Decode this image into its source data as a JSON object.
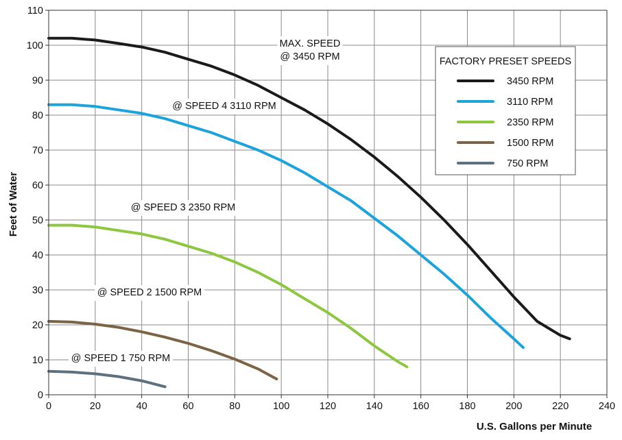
{
  "chart_data": {
    "type": "line",
    "title": "",
    "xlabel": "U.S. Gallons per Minute",
    "ylabel": "Feet of Water",
    "xlim": [
      0,
      240
    ],
    "ylim": [
      0,
      110
    ],
    "xticks": [
      0,
      20,
      40,
      60,
      80,
      100,
      120,
      140,
      160,
      180,
      200,
      220,
      240
    ],
    "yticks": [
      0,
      10,
      20,
      30,
      40,
      50,
      60,
      70,
      80,
      90,
      100,
      110
    ],
    "grid": true,
    "legend": {
      "title": "FACTORY PRESET SPEEDS",
      "placement": "top-right"
    },
    "series": [
      {
        "name": "3450 RPM",
        "color": "#1a1a1a",
        "annotation": [
          "MAX. SPEED",
          "@ 3450 RPM"
        ],
        "x": [
          0,
          10,
          20,
          30,
          40,
          50,
          60,
          70,
          80,
          90,
          100,
          110,
          120,
          130,
          140,
          150,
          160,
          170,
          180,
          190,
          200,
          210,
          220,
          224
        ],
        "y": [
          102,
          102,
          101.5,
          100.5,
          99.5,
          98,
          96,
          94,
          91.5,
          88.5,
          85,
          81.5,
          77.5,
          73,
          68,
          62.5,
          56.5,
          50,
          43,
          35.5,
          28,
          21,
          17,
          16
        ]
      },
      {
        "name": "3110 RPM",
        "color": "#1aa3dc",
        "annotation": [
          "@ SPEED 4 3110 RPM"
        ],
        "x": [
          0,
          10,
          20,
          30,
          40,
          50,
          60,
          70,
          80,
          90,
          100,
          110,
          120,
          130,
          140,
          150,
          160,
          170,
          180,
          190,
          200,
          204
        ],
        "y": [
          83,
          83,
          82.5,
          81.5,
          80.5,
          79,
          77,
          75,
          72.5,
          70,
          67,
          63.5,
          59.5,
          55.5,
          50.5,
          45.5,
          40,
          34.5,
          28.5,
          22,
          16,
          13.5
        ]
      },
      {
        "name": "2350 RPM",
        "color": "#8dc63f",
        "annotation": [
          "@ SPEED 3 2350 RPM"
        ],
        "x": [
          0,
          10,
          20,
          30,
          40,
          50,
          60,
          70,
          80,
          90,
          100,
          110,
          120,
          130,
          140,
          150,
          154
        ],
        "y": [
          48.5,
          48.5,
          48,
          47,
          46,
          44.5,
          42.5,
          40.5,
          38,
          35,
          31.5,
          27.5,
          23.5,
          19,
          14,
          9.5,
          8
        ]
      },
      {
        "name": "1500 RPM",
        "color": "#7b6446",
        "annotation": [
          "@ SPEED 2 1500 RPM"
        ],
        "x": [
          0,
          10,
          20,
          30,
          40,
          50,
          60,
          70,
          80,
          90,
          98
        ],
        "y": [
          21,
          20.8,
          20.2,
          19.3,
          18,
          16.5,
          14.7,
          12.6,
          10.2,
          7.4,
          4.5
        ]
      },
      {
        "name": "750 RPM",
        "color": "#5d7080",
        "annotation": [
          "@ SPEED 1 750 RPM"
        ],
        "x": [
          0,
          10,
          20,
          30,
          40,
          50
        ],
        "y": [
          6.7,
          6.5,
          6,
          5.2,
          4,
          2.3
        ]
      }
    ]
  }
}
